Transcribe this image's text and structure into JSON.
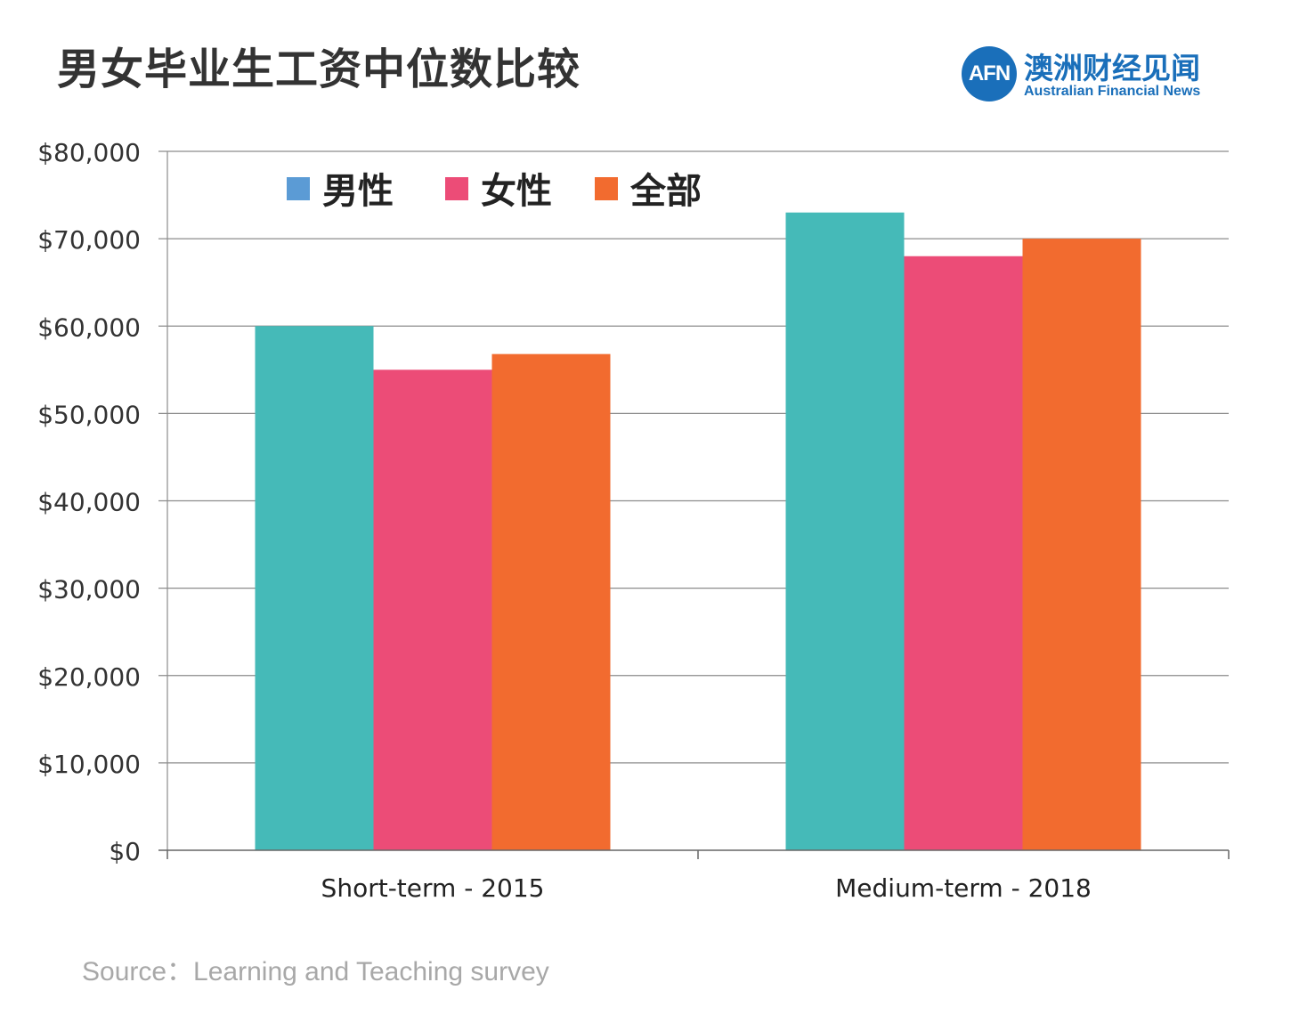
{
  "title": "男女毕业生工资中位数比较",
  "brand": {
    "logo_text": "AFN",
    "name_cn": "澳洲财经见闻",
    "name_en": "Australian Financial News"
  },
  "source": "Source：Learning and Teaching survey",
  "colors": {
    "male": "#45bab8",
    "female": "#ec4c77",
    "all": "#f26b2f",
    "legend_male": "#5b9bd5",
    "grid": "#8c8c8c",
    "brand": "#1a6fba"
  },
  "chart_data": {
    "type": "bar",
    "categories": [
      "Short-term - 2015",
      "Medium-term - 2018"
    ],
    "series": [
      {
        "name": "男性",
        "key": "male",
        "values": [
          60000,
          73000
        ]
      },
      {
        "name": "女性",
        "key": "female",
        "values": [
          55000,
          68000
        ]
      },
      {
        "name": "全部",
        "key": "all",
        "values": [
          56800,
          70000
        ]
      }
    ],
    "ylim": [
      0,
      80000
    ],
    "yticks": [
      0,
      10000,
      20000,
      30000,
      40000,
      50000,
      60000,
      70000,
      80000
    ],
    "ytick_labels": [
      "$0",
      "$10,000",
      "$20,000",
      "$30,000",
      "$40,000",
      "$50,000",
      "$60,000",
      "$70,000",
      "$80,000"
    ],
    "grid": true,
    "legend_position": "top-left"
  }
}
